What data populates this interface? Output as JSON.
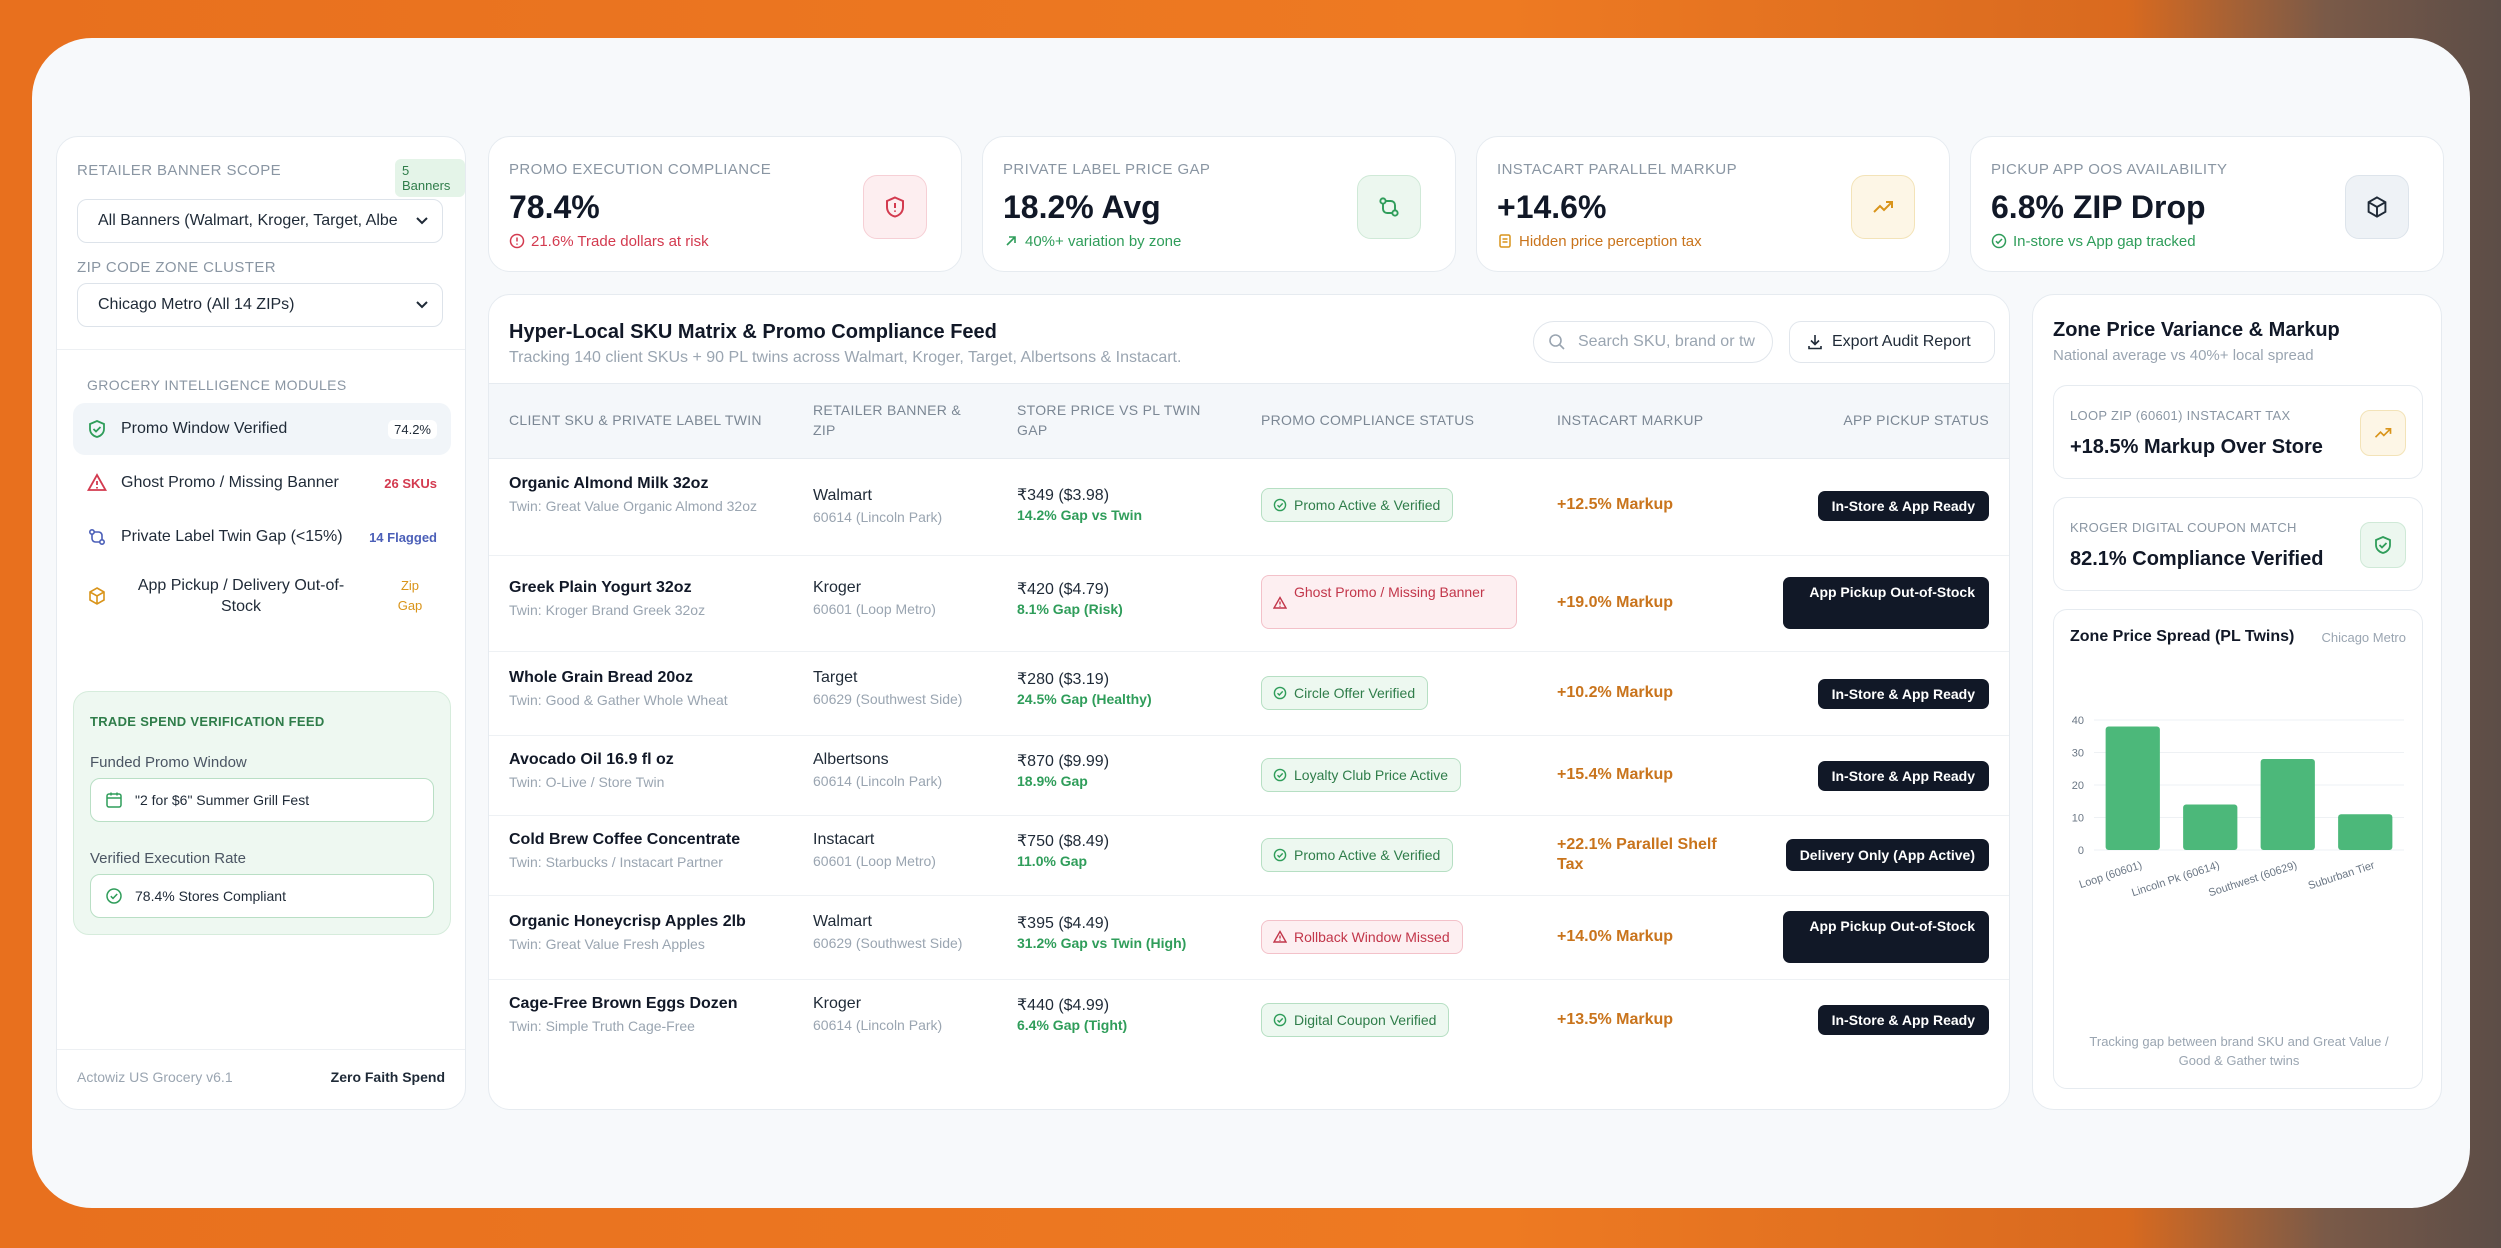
{
  "sidebar": {
    "scope_label": "RETAILER BANNER SCOPE",
    "scope_badge": "5 Banners",
    "scope_value": "All Banners (Walmart, Kroger, Target, Albe",
    "zip_label": "ZIP CODE ZONE CLUSTER",
    "zip_value": "Chicago Metro (All 14 ZIPs)",
    "modules_label": "GROCERY INTELLIGENCE MODULES",
    "modules": [
      {
        "label": "Promo Window Verified",
        "value": "74.2%",
        "icon": "shield-check-icon",
        "color": "#2f9d5a"
      },
      {
        "label": "Ghost Promo / Missing Banner",
        "value": "26 SKUs",
        "icon": "alert-triangle-icon",
        "color": "#d33a4f"
      },
      {
        "label": "Private Label Twin Gap (<15%)",
        "value": "14 Flagged",
        "icon": "compare-arrows-icon",
        "color": "#4b5fb8"
      },
      {
        "label": "App Pickup / Delivery Out-of-Stock",
        "value": "Zip Gap",
        "icon": "box-icon",
        "color": "#d9941a"
      }
    ],
    "feed": {
      "title": "TRADE SPEND VERIFICATION FEED",
      "window_label": "Funded Promo Window",
      "window_value": "\"2 for $6\" Summer Grill Fest",
      "rate_label": "Verified Execution Rate",
      "rate_value": "78.4% Stores Compliant"
    },
    "footer_left": "Actowiz US Grocery v6.1",
    "footer_right": "Zero Faith Spend"
  },
  "kpis": [
    {
      "title": "PROMO EXECUTION COMPLIANCE",
      "value": "78.4%",
      "sub": "21.6% Trade dollars at risk",
      "sub_color": "#d33a4f",
      "box_bg": "#fdeef0",
      "box_border": "#f6cfd5",
      "icon": "shield-alert-icon",
      "icon_color": "#d33a4f"
    },
    {
      "title": "PRIVATE LABEL PRICE GAP",
      "value": "18.2% Avg",
      "sub": "40%+ variation by zone",
      "sub_color": "#2f9d5a",
      "box_bg": "#ecf7ef",
      "box_border": "#cfe9d7",
      "icon": "compare-arrows-icon",
      "icon_color": "#2f9d5a"
    },
    {
      "title": "INSTACART PARALLEL MARKUP",
      "value": "+14.6%",
      "sub": "Hidden price perception tax",
      "sub_color": "#c9741c",
      "box_bg": "#fdf6e6",
      "box_border": "#f3e3b8",
      "icon": "trend-up-icon",
      "icon_color": "#d9941a"
    },
    {
      "title": "PICKUP APP OOS AVAILABILITY",
      "value": "6.8% ZIP Drop",
      "sub": "In-store vs App gap tracked",
      "sub_color": "#2f9d5a",
      "box_bg": "#eef2f6",
      "box_border": "#dde4eb",
      "icon": "box-icon",
      "icon_color": "#1f2a37"
    }
  ],
  "table": {
    "title": "Hyper-Local SKU Matrix & Promo Compliance Feed",
    "subtitle": "Tracking 140 client SKUs + 90 PL twins across Walmart, Kroger, Target, Albertsons & Instacart.",
    "search_placeholder": "Search SKU, brand or tw",
    "export_label": "Export Audit Report",
    "headers": [
      "CLIENT SKU & PRIVATE LABEL TWIN",
      "RETAILER BANNER & ZIP",
      "STORE PRICE VS PL TWIN GAP",
      "PROMO COMPLIANCE STATUS",
      "INSTACART MARKUP",
      "APP PICKUP STATUS"
    ],
    "rows": [
      {
        "sku": "Organic Almond Milk 32oz",
        "twin": "Twin: Great Value Organic Almond 32oz",
        "banner": "Walmart",
        "zip": "60614 (Lincoln Park)",
        "price": "₹349 ($3.98)",
        "gap": "14.2% Gap vs Twin",
        "status": "Promo Active & Verified",
        "status_type": "ok",
        "markup": "+12.5% Markup",
        "app": "In-Store & App Ready"
      },
      {
        "sku": "Greek Plain Yogurt 32oz",
        "twin": "Twin: Kroger Brand Greek 32oz",
        "banner": "Kroger",
        "zip": "60601 (Loop Metro)",
        "price": "₹420 ($4.79)",
        "gap": "8.1% Gap (Risk)",
        "status": "Ghost Promo / Missing Banner",
        "status_type": "bad",
        "markup": "+19.0% Markup",
        "app": "App Pickup Out-of-Stock"
      },
      {
        "sku": "Whole Grain Bread 20oz",
        "twin": "Twin: Good & Gather Whole Wheat",
        "banner": "Target",
        "zip": "60629 (Southwest Side)",
        "price": "₹280 ($3.19)",
        "gap": "24.5% Gap (Healthy)",
        "status": "Circle Offer Verified",
        "status_type": "ok",
        "markup": "+10.2% Markup",
        "app": "In-Store & App Ready"
      },
      {
        "sku": "Avocado Oil 16.9 fl oz",
        "twin": "Twin: O-Live / Store Twin",
        "banner": "Albertsons",
        "zip": "60614 (Lincoln Park)",
        "price": "₹870 ($9.99)",
        "gap": "18.9% Gap",
        "status": "Loyalty Club Price Active",
        "status_type": "ok",
        "markup": "+15.4% Markup",
        "app": "In-Store & App Ready"
      },
      {
        "sku": "Cold Brew Coffee Concentrate",
        "twin": "Twin: Starbucks / Instacart Partner",
        "banner": "Instacart",
        "zip": "60601 (Loop Metro)",
        "price": "₹750 ($8.49)",
        "gap": "11.0% Gap",
        "status": "Promo Active & Verified",
        "status_type": "ok",
        "markup": "+22.1% Parallel Shelf Tax",
        "app": "Delivery Only (App Active)"
      },
      {
        "sku": "Organic Honeycrisp Apples 2lb",
        "twin": "Twin: Great Value Fresh Apples",
        "banner": "Walmart",
        "zip": "60629 (Southwest Side)",
        "price": "₹395 ($4.49)",
        "gap": "31.2% Gap vs Twin (High)",
        "status": "Rollback Window Missed",
        "status_type": "bad",
        "markup": "+14.0% Markup",
        "app": "App Pickup Out-of-Stock"
      },
      {
        "sku": "Cage-Free Brown Eggs Dozen",
        "twin": "Twin: Simple Truth Cage-Free",
        "banner": "Kroger",
        "zip": "60614 (Lincoln Park)",
        "price": "₹440 ($4.99)",
        "gap": "6.4% Gap (Tight)",
        "status": "Digital Coupon Verified",
        "status_type": "ok",
        "markup": "+13.5% Markup",
        "app": "In-Store & App Ready"
      }
    ]
  },
  "right": {
    "title": "Zone Price Variance & Markup",
    "subtitle": "National average vs 40%+ local spread",
    "card1_title": "LOOP ZIP (60601) INSTACART TAX",
    "card1_value": "+18.5% Markup Over Store",
    "card2_title": "KROGER DIGITAL COUPON MATCH",
    "card2_value": "82.1% Compliance Verified",
    "chart_title": "Zone Price Spread (PL Twins)",
    "chart_region": "Chicago Metro",
    "chart_note": "Tracking gap between brand SKU and Great Value / Good & Gather twins"
  },
  "chart_data": {
    "type": "bar",
    "categories": [
      "Loop (60601)",
      "Lincoln Pk (60614)",
      "Southwest (60629)",
      "Suburban Tier"
    ],
    "values": [
      38,
      14,
      28,
      11
    ],
    "ylim": [
      0,
      40
    ],
    "yticks": [
      0,
      10,
      20,
      30,
      40
    ],
    "color": "#4cb87a",
    "grid": true
  }
}
